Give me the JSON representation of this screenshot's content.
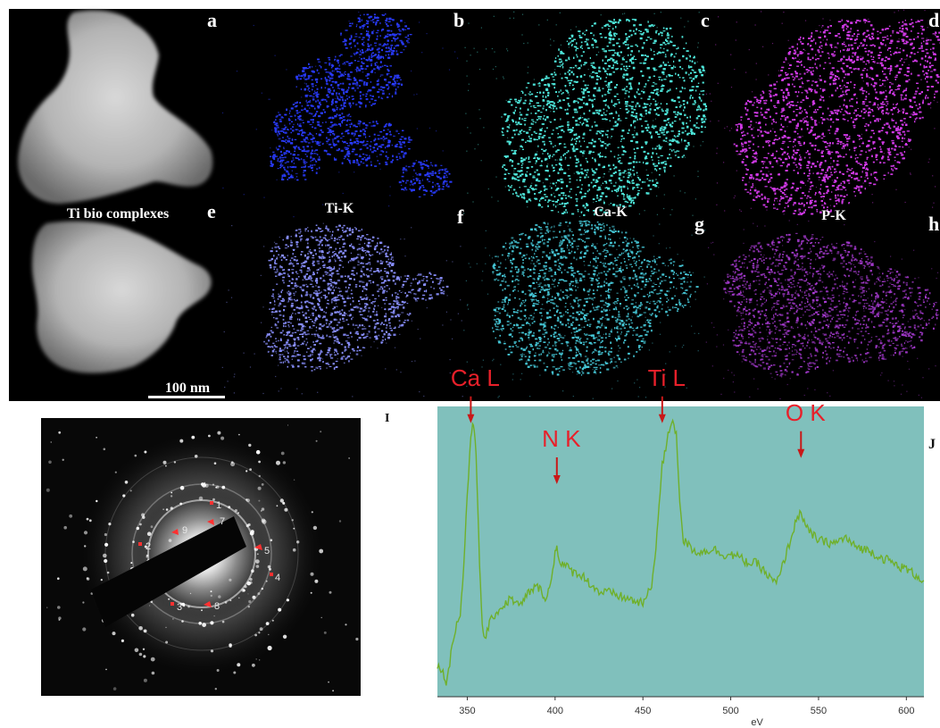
{
  "panels": {
    "a": {
      "letter": "a",
      "caption": "Ti bio complexes"
    },
    "b": {
      "letter": "b",
      "caption": "Ti-K",
      "color": "#2a3cff"
    },
    "c": {
      "letter": "c",
      "caption": "Ca-K",
      "color": "#4ee6da"
    },
    "d": {
      "letter": "d",
      "caption": "P-K",
      "color": "#d03ae6"
    },
    "e": {
      "letter": "e"
    },
    "f": {
      "letter": "f",
      "color": "#8a90ff"
    },
    "g": {
      "letter": "g",
      "color": "#46c8d8"
    },
    "h": {
      "letter": "h",
      "color": "#a63ad0"
    },
    "scale_bar": "100 nm",
    "I": {
      "letter": "I",
      "spot_labels": [
        "1",
        "2",
        "3",
        "4",
        "5",
        "6",
        "7",
        "8",
        "9"
      ]
    },
    "J": {
      "letter": "J"
    }
  },
  "chart_data": {
    "type": "line",
    "xlabel": "eV",
    "xlim": [
      333,
      610
    ],
    "ylim": [
      0,
      100
    ],
    "xticks": [
      "350",
      "400",
      "450",
      "500",
      "550",
      "600"
    ],
    "background": "#80c0bc",
    "line_color": "#6fb02a",
    "annotations": [
      {
        "text": "Ca L",
        "x": 352,
        "y": 93
      },
      {
        "text": "N K",
        "x": 401,
        "y": 72
      },
      {
        "text": "Ti L",
        "x": 461,
        "y": 93
      },
      {
        "text": "O K",
        "x": 540,
        "y": 81
      }
    ],
    "series": [
      {
        "points": [
          [
            333,
            10
          ],
          [
            335,
            10
          ],
          [
            338,
            5
          ],
          [
            340,
            12
          ],
          [
            342,
            20
          ],
          [
            344,
            25
          ],
          [
            346,
            28
          ],
          [
            348,
            45
          ],
          [
            350,
            70
          ],
          [
            352,
            88
          ],
          [
            353,
            95
          ],
          [
            354,
            92
          ],
          [
            355,
            85
          ],
          [
            356,
            65
          ],
          [
            357,
            45
          ],
          [
            358,
            30
          ],
          [
            359,
            22
          ],
          [
            360,
            20
          ],
          [
            362,
            24
          ],
          [
            365,
            28
          ],
          [
            370,
            31
          ],
          [
            375,
            34
          ],
          [
            380,
            31
          ],
          [
            385,
            36
          ],
          [
            390,
            38
          ],
          [
            395,
            34
          ],
          [
            398,
            40
          ],
          [
            400,
            50
          ],
          [
            401,
            52
          ],
          [
            403,
            46
          ],
          [
            406,
            45
          ],
          [
            410,
            43
          ],
          [
            415,
            42
          ],
          [
            420,
            39
          ],
          [
            425,
            36
          ],
          [
            430,
            36
          ],
          [
            435,
            35
          ],
          [
            440,
            34
          ],
          [
            445,
            33
          ],
          [
            450,
            32
          ],
          [
            455,
            38
          ],
          [
            458,
            56
          ],
          [
            461,
            80
          ],
          [
            463,
            85
          ],
          [
            465,
            92
          ],
          [
            467,
            96
          ],
          [
            469,
            90
          ],
          [
            471,
            68
          ],
          [
            473,
            54
          ],
          [
            476,
            52
          ],
          [
            480,
            50
          ],
          [
            485,
            50
          ],
          [
            490,
            51
          ],
          [
            495,
            49
          ],
          [
            500,
            49
          ],
          [
            505,
            48
          ],
          [
            510,
            46
          ],
          [
            515,
            46
          ],
          [
            518,
            44
          ],
          [
            522,
            41
          ],
          [
            526,
            39
          ],
          [
            528,
            42
          ],
          [
            532,
            50
          ],
          [
            536,
            58
          ],
          [
            538,
            62
          ],
          [
            540,
            64
          ],
          [
            543,
            58
          ],
          [
            546,
            56
          ],
          [
            550,
            54
          ],
          [
            555,
            53
          ],
          [
            560,
            53
          ],
          [
            565,
            55
          ],
          [
            570,
            52
          ],
          [
            575,
            51
          ],
          [
            580,
            50
          ],
          [
            585,
            48
          ],
          [
            590,
            47
          ],
          [
            595,
            45
          ],
          [
            600,
            44
          ],
          [
            605,
            42
          ],
          [
            610,
            40
          ]
        ]
      }
    ]
  }
}
